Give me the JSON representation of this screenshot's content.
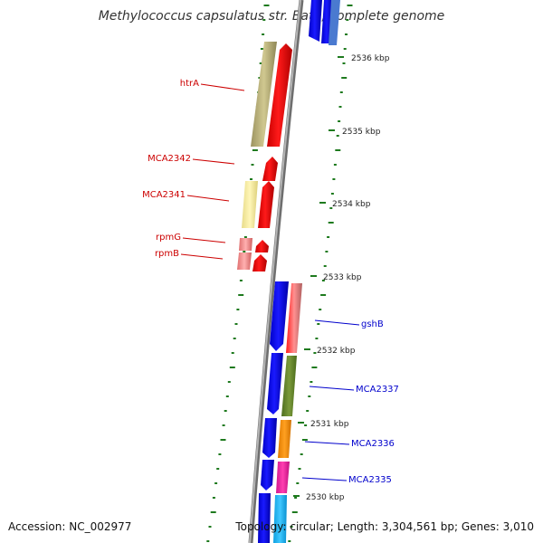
{
  "title": "Methylococcus capsulatus str. Bath, complete genome",
  "footer": {
    "accession": "Accession: NC_002977",
    "summary": "Topology: circular; Length: 3,304,561 bp; Genes: 3,010"
  },
  "colors": {
    "backbone": "#8c8c8c",
    "tick": "#1e7a1e",
    "forward_label": "#cc0000",
    "reverse_label": "#0000cc"
  },
  "scale_labels": [
    "2536 kbp",
    "2535 kbp",
    "2534 kbp",
    "2533 kbp",
    "2532 kbp",
    "2531 kbp",
    "2530 kbp"
  ],
  "forward_genes": [
    {
      "label": "htrA"
    },
    {
      "label": "MCA2342"
    },
    {
      "label": "MCA2341"
    },
    {
      "label": "rpmG"
    },
    {
      "label": "rpmB"
    }
  ],
  "reverse_genes": [
    {
      "label": "gshB"
    },
    {
      "label": "MCA2337"
    },
    {
      "label": "MCA2336"
    },
    {
      "label": "MCA2335"
    }
  ]
}
